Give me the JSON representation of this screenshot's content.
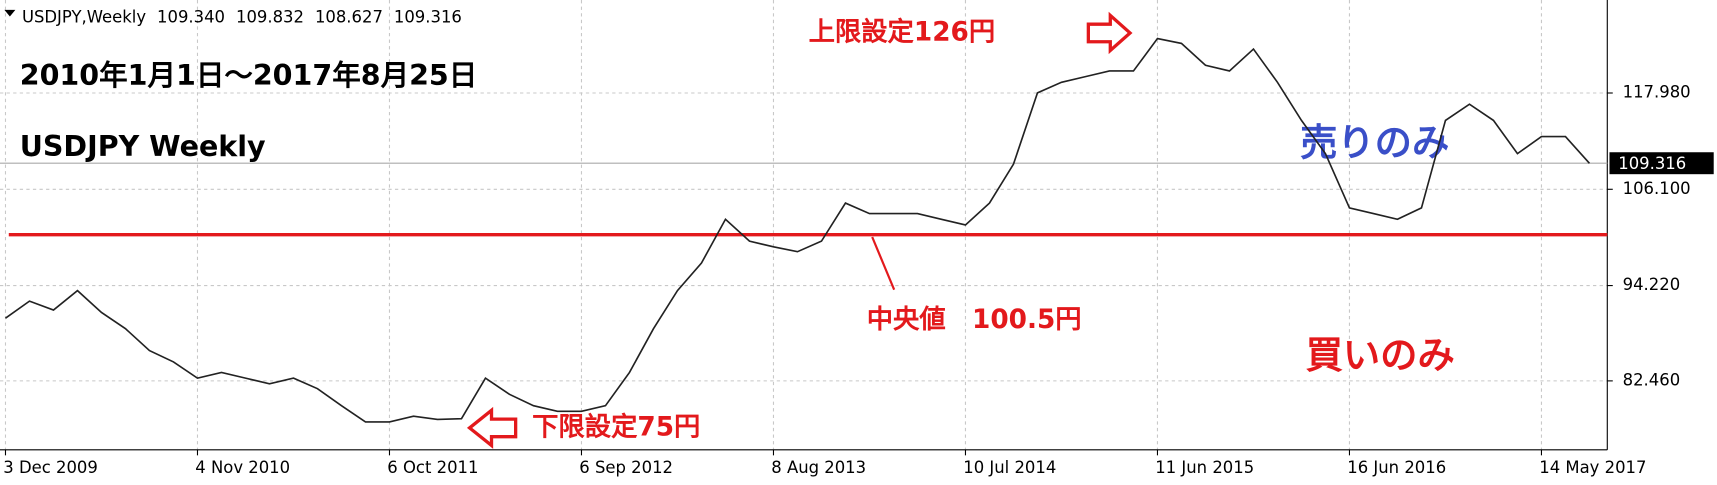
{
  "chart_data": {
    "type": "line",
    "header": {
      "symbol": "USDJPY,Weekly",
      "ohlc": [
        "109.340",
        "109.832",
        "108.627",
        "109.316"
      ]
    },
    "title": "2010年1月1日～2017年8月25日",
    "subtitle": "USDJPY Weekly",
    "annotations": {
      "upper": "上限設定126円",
      "lower": "下限設定75円",
      "median_label": "中央値　100.5円",
      "sell": "売りのみ",
      "buy": "買いのみ"
    },
    "median": 100.5,
    "last_price": {
      "value": 109.316,
      "label": "109.316"
    },
    "categories": [
      "3 Dec 2009",
      null,
      null,
      null,
      null,
      null,
      null,
      null,
      "4 Nov 2010",
      null,
      null,
      null,
      null,
      null,
      null,
      null,
      "6 Oct 2011",
      null,
      null,
      null,
      null,
      null,
      null,
      null,
      "6 Sep 2012",
      null,
      null,
      null,
      null,
      null,
      null,
      null,
      "8 Aug 2013",
      null,
      null,
      null,
      null,
      null,
      null,
      null,
      "10 Jul 2014",
      null,
      null,
      null,
      null,
      null,
      null,
      null,
      "11 Jun 2015",
      null,
      null,
      null,
      null,
      null,
      null,
      null,
      "16 Jun 2016",
      null,
      null,
      null,
      null,
      null,
      null,
      null,
      "14 May 2017",
      null,
      null
    ],
    "series": [
      {
        "name": "USDJPY",
        "color": "#222222",
        "values": [
          90.2,
          92.3,
          91.2,
          93.6,
          90.9,
          88.9,
          86.2,
          84.8,
          82.8,
          83.5,
          82.8,
          82.1,
          82.8,
          81.5,
          79.4,
          77.4,
          77.4,
          78.1,
          77.7,
          77.8,
          82.8,
          80.8,
          79.4,
          78.7,
          78.7,
          79.4,
          83.5,
          88.9,
          93.6,
          97.0,
          102.4,
          99.7,
          99.0,
          98.4,
          99.7,
          104.4,
          103.1,
          103.1,
          103.1,
          102.4,
          101.7,
          104.4,
          109.2,
          118.0,
          119.3,
          120.0,
          120.7,
          120.7,
          124.7,
          124.1,
          121.4,
          120.7,
          123.4,
          119.3,
          114.6,
          110.5,
          103.8,
          103.1,
          102.4,
          103.8,
          114.6,
          116.6,
          114.6,
          110.5,
          112.6,
          112.6,
          109.3
        ]
      }
    ],
    "ylim": [
      73.95,
      129.45
    ],
    "yticks": [
      {
        "value": 82.46,
        "label": "82.460"
      },
      {
        "value": 94.22,
        "label": "94.220"
      },
      {
        "value": 106.1,
        "label": "106.100"
      },
      {
        "value": 117.98,
        "label": "117.980"
      }
    ],
    "grid": true,
    "median_color": "#e3191c",
    "annotation_colors": {
      "red": "#e3191c",
      "blue": "#3a4fc8"
    }
  }
}
